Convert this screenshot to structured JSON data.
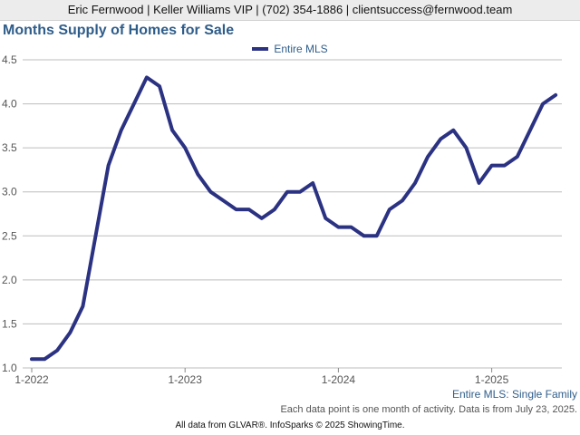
{
  "header": {
    "contact_bar": "Eric Fernwood | Keller Williams VIP | (702) 354-1886 | clientsuccess@fernwood.team"
  },
  "chart_data": {
    "type": "line",
    "title": "Months Supply of Homes for Sale",
    "subtitle": "Entire MLS: Single Family",
    "xlabel": "",
    "ylabel": "",
    "x_ticks": [
      "1-2022",
      "1-2023",
      "1-2024",
      "1-2025"
    ],
    "y_ticks": [
      "1.0",
      "1.5",
      "2.0",
      "2.5",
      "3.0",
      "3.5",
      "4.0",
      "4.5"
    ],
    "ylim": [
      1.0,
      4.5
    ],
    "grid": true,
    "legend_position": "top-center",
    "series": [
      {
        "name": "Entire MLS",
        "color": "#2b3282",
        "x": [
          "2022-01",
          "2022-02",
          "2022-03",
          "2022-04",
          "2022-05",
          "2022-06",
          "2022-07",
          "2022-08",
          "2022-09",
          "2022-10",
          "2022-11",
          "2022-12",
          "2023-01",
          "2023-02",
          "2023-03",
          "2023-04",
          "2023-05",
          "2023-06",
          "2023-07",
          "2023-08",
          "2023-09",
          "2023-10",
          "2023-11",
          "2023-12",
          "2024-01",
          "2024-02",
          "2024-03",
          "2024-04",
          "2024-05",
          "2024-06",
          "2024-07",
          "2024-08",
          "2024-09",
          "2024-10",
          "2024-11",
          "2024-12",
          "2025-01",
          "2025-02",
          "2025-03",
          "2025-04",
          "2025-05",
          "2025-06"
        ],
        "values": [
          1.1,
          1.1,
          1.2,
          1.4,
          1.7,
          2.5,
          3.3,
          3.7,
          4.0,
          4.3,
          4.2,
          3.7,
          3.5,
          3.2,
          3.0,
          2.9,
          2.8,
          2.8,
          2.7,
          2.8,
          3.0,
          3.0,
          3.1,
          2.7,
          2.6,
          2.6,
          2.5,
          2.5,
          2.8,
          2.9,
          3.1,
          3.4,
          3.6,
          3.7,
          3.5,
          3.1,
          3.3,
          3.3,
          3.4,
          3.7,
          4.0,
          4.1
        ]
      }
    ]
  },
  "notes": {
    "data_note": "Each data point is one month of activity. Data is from July 23, 2025.",
    "source": "All data from GLVAR®. InfoSparks © 2025 ShowingTime."
  }
}
